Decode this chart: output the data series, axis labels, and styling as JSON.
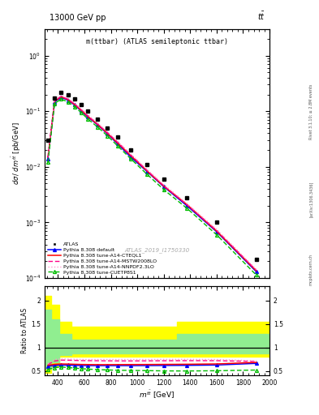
{
  "title_top": "13000 GeV pp",
  "title_right": "tt̅",
  "plot_title": "m(ttbar) (ATLAS semileptonic ttbar)",
  "watermark": "ATLAS_2019_I1750330",
  "rivet_text": "Rivet 3.1.10; ≥ 2.8M events",
  "arxiv_text": "[arXiv:1306.3436]",
  "mcplots_text": "mcplots.cern.ch",
  "ylabel_main": "dσ / d m^{tbar(t)} [pb/GeV]",
  "ratio_ylabel": "Ratio to ATLAS",
  "xlabel": "m^{tbar(t)} [GeV]",
  "xmin": 300,
  "xmax": 2000,
  "ymin": 0.0001,
  "ymax": 3.0,
  "ratio_ymin": 0.4,
  "ratio_ymax": 2.3,
  "ratio_yticks": [
    0.5,
    1.0,
    1.5,
    2.0
  ],
  "atlas_x": [
    325,
    375,
    425,
    475,
    525,
    575,
    625,
    700,
    775,
    850,
    950,
    1075,
    1200,
    1375,
    1600,
    1900
  ],
  "atlas_y": [
    0.03,
    0.175,
    0.215,
    0.195,
    0.165,
    0.13,
    0.1,
    0.072,
    0.05,
    0.034,
    0.02,
    0.011,
    0.006,
    0.0028,
    0.001,
    0.00022
  ],
  "py_default_x": [
    325,
    375,
    425,
    475,
    525,
    575,
    625,
    700,
    775,
    850,
    950,
    1075,
    1200,
    1375,
    1600,
    1900
  ],
  "py_default_y": [
    0.014,
    0.148,
    0.178,
    0.158,
    0.13,
    0.102,
    0.079,
    0.057,
    0.039,
    0.026,
    0.015,
    0.0082,
    0.0044,
    0.002,
    0.00068,
    0.00013
  ],
  "py_cteql1_x": [
    325,
    375,
    425,
    475,
    525,
    575,
    625,
    700,
    775,
    850,
    950,
    1075,
    1200,
    1375,
    1600,
    1900
  ],
  "py_cteql1_y": [
    0.015,
    0.152,
    0.182,
    0.162,
    0.133,
    0.105,
    0.081,
    0.058,
    0.04,
    0.027,
    0.016,
    0.0084,
    0.0045,
    0.0021,
    0.0007,
    0.000135
  ],
  "py_mstw_x": [
    325,
    375,
    425,
    475,
    525,
    575,
    625,
    700,
    775,
    850,
    950,
    1075,
    1200,
    1375,
    1600,
    1900
  ],
  "py_mstw_y": [
    0.015,
    0.155,
    0.185,
    0.165,
    0.136,
    0.107,
    0.083,
    0.059,
    0.041,
    0.028,
    0.0165,
    0.0086,
    0.0046,
    0.0021,
    0.00072,
    0.000138
  ],
  "py_nnpdf_x": [
    325,
    375,
    425,
    475,
    525,
    575,
    625,
    700,
    775,
    850,
    950,
    1075,
    1200,
    1375,
    1600,
    1900
  ],
  "py_nnpdf_y": [
    0.016,
    0.162,
    0.193,
    0.172,
    0.142,
    0.112,
    0.087,
    0.062,
    0.043,
    0.029,
    0.017,
    0.009,
    0.0048,
    0.0022,
    0.00075,
    0.000143
  ],
  "py_cuet_x": [
    325,
    375,
    425,
    475,
    525,
    575,
    625,
    700,
    775,
    850,
    950,
    1075,
    1200,
    1375,
    1600,
    1900
  ],
  "py_cuet_y": [
    0.012,
    0.138,
    0.165,
    0.147,
    0.121,
    0.095,
    0.073,
    0.052,
    0.036,
    0.024,
    0.014,
    0.0073,
    0.0039,
    0.0018,
    0.0006,
    0.000113
  ],
  "ratio_default_y": [
    0.6,
    0.615,
    0.625,
    0.622,
    0.618,
    0.614,
    0.613,
    0.612,
    0.612,
    0.612,
    0.612,
    0.613,
    0.615,
    0.618,
    0.625,
    0.66
  ],
  "ratio_cteql1_y": [
    0.62,
    0.64,
    0.648,
    0.645,
    0.641,
    0.637,
    0.635,
    0.633,
    0.633,
    0.634,
    0.635,
    0.636,
    0.638,
    0.641,
    0.648,
    0.68
  ],
  "ratio_mstw_y": [
    0.64,
    0.71,
    0.73,
    0.728,
    0.724,
    0.719,
    0.718,
    0.716,
    0.714,
    0.713,
    0.712,
    0.714,
    0.716,
    0.718,
    0.718,
    0.7
  ],
  "ratio_nnpdf_y": [
    0.65,
    0.745,
    0.752,
    0.75,
    0.747,
    0.743,
    0.742,
    0.742,
    0.742,
    0.742,
    0.742,
    0.742,
    0.744,
    0.745,
    0.742,
    0.715
  ],
  "ratio_cuet_y": [
    0.53,
    0.57,
    0.582,
    0.572,
    0.56,
    0.548,
    0.538,
    0.528,
    0.52,
    0.513,
    0.51,
    0.505,
    0.5,
    0.498,
    0.503,
    0.518
  ],
  "color_default": "#0000ff",
  "color_cteql1": "#ff0000",
  "color_mstw": "#ff0088",
  "color_nnpdf": "#ff99cc",
  "color_cuet": "#00bb00",
  "atlas_marker_color": "#000000",
  "background_color": "#ffffff"
}
